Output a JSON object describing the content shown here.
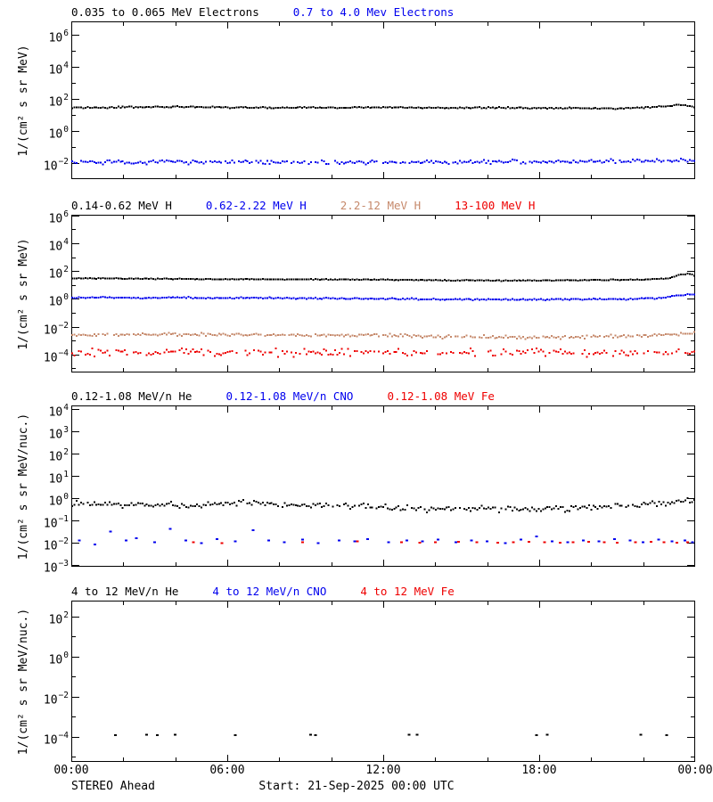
{
  "footer": {
    "spacecraft": "STEREO Ahead",
    "start_label": "Start: 21-Sep-2025 00:00 UTC"
  },
  "colors": {
    "black": "#000000",
    "blue": "#0000ee",
    "tan": "#c6896b",
    "red": "#ee0000"
  },
  "x_axis": {
    "range_hours": [
      0,
      24
    ],
    "major_tick_hours": [
      0,
      6,
      12,
      18,
      24
    ],
    "minor_step_hours": 2,
    "tick_labels": [
      "00:00",
      "06:00",
      "12:00",
      "18:00",
      "00:00"
    ]
  },
  "chart_data": [
    {
      "type": "scatter",
      "title_segments": [
        {
          "text": "0.035 to 0.065 MeV Electrons",
          "color": "black"
        },
        {
          "text": "0.7 to 4.0 Mev Electrons",
          "color": "blue"
        }
      ],
      "ylabel": "1/(cm² s sr MeV)",
      "ylog_min": -3.0,
      "ylog_max": 6.83,
      "yticks_labeled": [
        6,
        4,
        2,
        0,
        -2
      ],
      "yticks_minor": [
        5,
        3,
        1,
        -1
      ],
      "series": [
        {
          "name": "0.035 to 0.065 MeV Electrons",
          "color": "black",
          "mode": "dense",
          "x_hours": [
            0,
            2,
            4,
            6,
            8,
            10,
            12,
            14,
            16,
            18,
            20,
            21,
            22,
            22.8,
            23.5,
            24
          ],
          "values": [
            28,
            30,
            32,
            30,
            28,
            29,
            30,
            28,
            28,
            27,
            26,
            25,
            28,
            35,
            42,
            30
          ],
          "scatter_decades": 0.05,
          "dropout": 0
        },
        {
          "name": "0.7 to 4.0 Mev Electrons",
          "color": "blue",
          "mode": "dense",
          "x_hours": [
            0,
            6,
            12,
            18,
            23,
            24
          ],
          "values": [
            0.011,
            0.012,
            0.011,
            0.012,
            0.013,
            0.016
          ],
          "scatter_decades": 0.15,
          "dropout": 0.05
        }
      ]
    },
    {
      "type": "scatter",
      "title_segments": [
        {
          "text": "0.14-0.62 MeV H",
          "color": "black"
        },
        {
          "text": "0.62-2.22 MeV H",
          "color": "blue"
        },
        {
          "text": "2.2-12 MeV H",
          "color": "tan"
        },
        {
          "text": "13-100 MeV H",
          "color": "red"
        }
      ],
      "ylabel": "1/(cm² s sr MeV)",
      "ylog_min": -5.3,
      "ylog_max": 6.05,
      "yticks_labeled": [
        6,
        4,
        2,
        0,
        -2,
        -4
      ],
      "yticks_minor": [
        5,
        3,
        1,
        -1,
        -3,
        -5
      ],
      "series": [
        {
          "name": "0.14-0.62 MeV H",
          "color": "black",
          "mode": "dense",
          "x_hours": [
            0,
            3,
            6,
            9,
            12,
            15,
            18,
            20,
            22,
            23,
            23.4,
            23.8,
            24
          ],
          "values": [
            30,
            28,
            26,
            25,
            24,
            21,
            21,
            22,
            24,
            30,
            55,
            62,
            42
          ],
          "scatter_decades": 0.035,
          "dropout": 0
        },
        {
          "name": "0.62-2.22 MeV H",
          "color": "blue",
          "mode": "dense",
          "x_hours": [
            0,
            3,
            6,
            9,
            12,
            15,
            18,
            21,
            22.5,
            23.5,
            24
          ],
          "values": [
            1.25,
            1.2,
            1.15,
            1.1,
            1.0,
            0.9,
            0.9,
            0.95,
            1.1,
            1.9,
            2.1
          ],
          "scatter_decades": 0.06,
          "dropout": 0
        },
        {
          "name": "2.2-12 MeV H",
          "color": "tan",
          "mode": "dense",
          "x_hours": [
            0,
            3,
            6,
            9,
            12,
            15,
            18,
            21,
            23,
            24
          ],
          "values": [
            0.0025,
            0.0028,
            0.0026,
            0.0024,
            0.0022,
            0.0019,
            0.0017,
            0.002,
            0.0026,
            0.0038
          ],
          "scatter_decades": 0.13,
          "dropout": 0.05
        },
        {
          "name": "13-100 MeV H",
          "color": "red",
          "mode": "dense",
          "x_hours": [
            0,
            24
          ],
          "values": [
            0.00014,
            0.00014
          ],
          "scatter_decades": 0.3,
          "dropout": 0.3
        }
      ]
    },
    {
      "type": "scatter",
      "title_segments": [
        {
          "text": "0.12-1.08 MeV/n He",
          "color": "black"
        },
        {
          "text": "0.12-1.08 MeV/n CNO",
          "color": "blue"
        },
        {
          "text": "0.12-1.08 MeV Fe",
          "color": "red"
        }
      ],
      "ylabel": "1/(cm² s sr MeV/nuc.)",
      "ylog_min": -3.1,
      "ylog_max": 4.16,
      "yticks_labeled": [
        4,
        3,
        2,
        1,
        0,
        -1,
        -2,
        -3
      ],
      "yticks_minor": [],
      "series": [
        {
          "name": "0.12-1.08 MeV/n He",
          "color": "black",
          "mode": "dense",
          "x_hours": [
            0,
            2,
            4,
            6,
            8,
            10,
            12,
            14,
            16,
            18,
            20,
            22,
            23.5,
            24
          ],
          "values": [
            0.55,
            0.5,
            0.45,
            0.6,
            0.5,
            0.45,
            0.4,
            0.3,
            0.35,
            0.28,
            0.4,
            0.45,
            0.7,
            0.85
          ],
          "scatter_decades": 0.16,
          "dropout": 0.08
        },
        {
          "name": "0.12-1.08 MeV/n CNO",
          "color": "blue",
          "mode": "sparse",
          "points": [
            [
              0.3,
              0.012
            ],
            [
              0.9,
              0.008
            ],
            [
              1.5,
              0.03
            ],
            [
              2.1,
              0.012
            ],
            [
              2.5,
              0.015
            ],
            [
              3.2,
              0.01
            ],
            [
              3.8,
              0.04
            ],
            [
              4.4,
              0.012
            ],
            [
              5.0,
              0.009
            ],
            [
              5.6,
              0.014
            ],
            [
              6.3,
              0.011
            ],
            [
              7.0,
              0.035
            ],
            [
              7.6,
              0.012
            ],
            [
              8.2,
              0.01
            ],
            [
              8.9,
              0.013
            ],
            [
              9.5,
              0.009
            ],
            [
              10.3,
              0.012
            ],
            [
              10.9,
              0.011
            ],
            [
              11.4,
              0.014
            ],
            [
              12.2,
              0.01
            ],
            [
              12.9,
              0.012
            ],
            [
              13.5,
              0.011
            ],
            [
              14.1,
              0.013
            ],
            [
              14.8,
              0.01
            ],
            [
              15.4,
              0.012
            ],
            [
              16.0,
              0.011
            ],
            [
              16.7,
              0.009
            ],
            [
              17.3,
              0.013
            ],
            [
              17.9,
              0.018
            ],
            [
              18.5,
              0.011
            ],
            [
              19.1,
              0.01
            ],
            [
              19.7,
              0.012
            ],
            [
              20.3,
              0.011
            ],
            [
              20.9,
              0.014
            ],
            [
              21.5,
              0.012
            ],
            [
              22.0,
              0.01
            ],
            [
              22.6,
              0.013
            ],
            [
              23.1,
              0.011
            ],
            [
              23.6,
              0.012
            ],
            [
              23.9,
              0.01
            ]
          ]
        },
        {
          "name": "0.12-1.08 MeV Fe",
          "color": "red",
          "mode": "sparse",
          "points": [
            [
              4.7,
              0.01
            ],
            [
              5.8,
              0.009
            ],
            [
              8.9,
              0.01
            ],
            [
              11.0,
              0.011
            ],
            [
              12.7,
              0.01
            ],
            [
              13.4,
              0.0095
            ],
            [
              14.0,
              0.01
            ],
            [
              14.9,
              0.0105
            ],
            [
              15.6,
              0.01
            ],
            [
              16.4,
              0.0095
            ],
            [
              17.0,
              0.01
            ],
            [
              17.6,
              0.0105
            ],
            [
              18.2,
              0.01
            ],
            [
              18.8,
              0.0095
            ],
            [
              19.3,
              0.01
            ],
            [
              19.9,
              0.0105
            ],
            [
              20.5,
              0.01
            ],
            [
              21.0,
              0.0095
            ],
            [
              21.7,
              0.01
            ],
            [
              22.3,
              0.0105
            ],
            [
              22.8,
              0.01
            ],
            [
              23.3,
              0.0095
            ],
            [
              23.7,
              0.01
            ]
          ]
        }
      ]
    },
    {
      "type": "scatter",
      "title_segments": [
        {
          "text": "4 to 12 MeV/n He",
          "color": "black"
        },
        {
          "text": "4 to 12 MeV/n CNO",
          "color": "blue"
        },
        {
          "text": "4 to 12 MeV Fe",
          "color": "red"
        }
      ],
      "ylabel": "1/(cm² s sr MeV/nuc.)",
      "ylog_min": -5.25,
      "ylog_max": 2.8,
      "yticks_labeled": [
        2,
        0,
        -2,
        -4
      ],
      "yticks_minor": [
        1,
        -1,
        -3,
        -5
      ],
      "series": [
        {
          "name": "4 to 12 MeV/n He",
          "color": "black",
          "mode": "sparse",
          "points": [
            [
              1.7,
              0.00012
            ],
            [
              2.9,
              0.00013
            ],
            [
              3.3,
              0.00012
            ],
            [
              4.0,
              0.000125
            ],
            [
              6.3,
              0.00012
            ],
            [
              9.2,
              0.00013
            ],
            [
              9.4,
              0.00012
            ],
            [
              13.0,
              0.000125
            ],
            [
              13.3,
              0.00013
            ],
            [
              17.9,
              0.00012
            ],
            [
              18.3,
              0.000125
            ],
            [
              21.9,
              0.00013
            ],
            [
              22.9,
              0.00012
            ]
          ]
        },
        {
          "name": "4 to 12 MeV/n CNO",
          "color": "blue",
          "mode": "sparse",
          "points": []
        },
        {
          "name": "4 to 12 MeV Fe",
          "color": "red",
          "mode": "sparse",
          "points": []
        }
      ]
    }
  ]
}
